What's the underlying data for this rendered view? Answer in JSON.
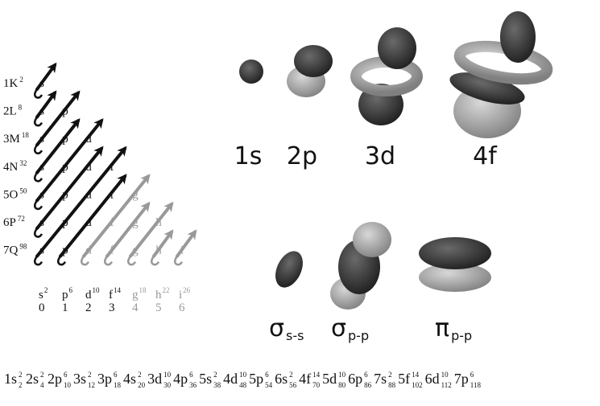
{
  "rows": [
    {
      "label": "1K",
      "capacity": "2",
      "subshells": [
        {
          "letter": "s",
          "color": "#111"
        }
      ]
    },
    {
      "label": "2L",
      "capacity": "8",
      "subshells": [
        {
          "letter": "s",
          "color": "#111"
        },
        {
          "letter": "p",
          "color": "#111"
        }
      ]
    },
    {
      "label": "3M",
      "capacity": "18",
      "subshells": [
        {
          "letter": "s",
          "color": "#111"
        },
        {
          "letter": "p",
          "color": "#111"
        },
        {
          "letter": "d",
          "color": "#111"
        }
      ]
    },
    {
      "label": "4N",
      "capacity": "32",
      "subshells": [
        {
          "letter": "s",
          "color": "#111"
        },
        {
          "letter": "p",
          "color": "#111"
        },
        {
          "letter": "d",
          "color": "#111"
        },
        {
          "letter": "f",
          "color": "#111"
        }
      ]
    },
    {
      "label": "5O",
      "capacity": "50",
      "subshells": [
        {
          "letter": "s",
          "color": "#111"
        },
        {
          "letter": "p",
          "color": "#111"
        },
        {
          "letter": "d",
          "color": "#111"
        },
        {
          "letter": "f",
          "color": "#111"
        },
        {
          "letter": "g",
          "color": "#999"
        }
      ]
    },
    {
      "label": "6P",
      "capacity": "72",
      "subshells": [
        {
          "letter": "s",
          "color": "#111"
        },
        {
          "letter": "p",
          "color": "#111"
        },
        {
          "letter": "d",
          "color": "#111"
        },
        {
          "letter": "f",
          "color": "#999"
        },
        {
          "letter": "g",
          "color": "#999"
        },
        {
          "letter": "h",
          "color": "#999"
        }
      ]
    },
    {
      "label": "7Q",
      "capacity": "98",
      "subshells": [
        {
          "letter": "s",
          "color": "#111"
        },
        {
          "letter": "p",
          "color": "#111"
        },
        {
          "letter": "d",
          "color": "#999"
        },
        {
          "letter": "f",
          "color": "#999"
        },
        {
          "letter": "g",
          "color": "#999"
        },
        {
          "letter": "h",
          "color": "#999"
        },
        {
          "letter": "i",
          "color": "#999"
        }
      ]
    }
  ],
  "columns": [
    {
      "letter": "s",
      "capacity": "2",
      "l": "0",
      "color": "#111"
    },
    {
      "letter": "p",
      "capacity": "6",
      "l": "1",
      "color": "#111"
    },
    {
      "letter": "d",
      "capacity": "10",
      "l": "2",
      "color": "#111"
    },
    {
      "letter": "f",
      "capacity": "14",
      "l": "3",
      "color": "#111"
    },
    {
      "letter": "g",
      "capacity": "18",
      "l": "4",
      "color": "#999"
    },
    {
      "letter": "h",
      "capacity": "22",
      "l": "5",
      "color": "#999"
    },
    {
      "letter": "i",
      "capacity": "26",
      "l": "6",
      "color": "#999"
    }
  ],
  "orbitals": [
    "1s",
    "2p",
    "3d",
    "4f"
  ],
  "bonds": [
    {
      "symbol": "σ",
      "sub": "s-s"
    },
    {
      "symbol": "σ",
      "sub": "p-p"
    },
    {
      "symbol": "π",
      "sub": "p-p"
    }
  ],
  "sequence": [
    {
      "orbital": "1s",
      "sup": "2",
      "sub": "2"
    },
    {
      "orbital": "2s",
      "sup": "2",
      "sub": "4"
    },
    {
      "orbital": "2p",
      "sup": "6",
      "sub": "10"
    },
    {
      "orbital": "3s",
      "sup": "2",
      "sub": "12"
    },
    {
      "orbital": "3p",
      "sup": "6",
      "sub": "18"
    },
    {
      "orbital": "4s",
      "sup": "2",
      "sub": "20"
    },
    {
      "orbital": "3d",
      "sup": "10",
      "sub": "30"
    },
    {
      "orbital": "4p",
      "sup": "6",
      "sub": "36"
    },
    {
      "orbital": "5s",
      "sup": "2",
      "sub": "38"
    },
    {
      "orbital": "4d",
      "sup": "10",
      "sub": "48"
    },
    {
      "orbital": "5p",
      "sup": "6",
      "sub": "54"
    },
    {
      "orbital": "6s",
      "sup": "2",
      "sub": "56"
    },
    {
      "orbital": "4f",
      "sup": "14",
      "sub": "70"
    },
    {
      "orbital": "5d",
      "sup": "10",
      "sub": "80"
    },
    {
      "orbital": "6p",
      "sup": "6",
      "sub": "86"
    },
    {
      "orbital": "7s",
      "sup": "2",
      "sub": "88"
    },
    {
      "orbital": "5f",
      "sup": "14",
      "sub": "102"
    },
    {
      "orbital": "6d",
      "sup": "10",
      "sub": "112"
    },
    {
      "orbital": "7p",
      "sup": "6",
      "sub": "118"
    }
  ]
}
